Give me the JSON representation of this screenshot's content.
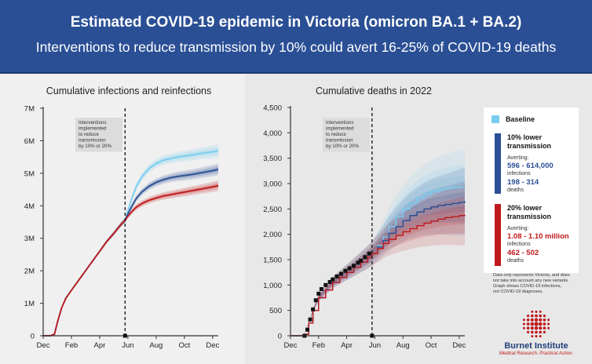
{
  "header": {
    "title": "Estimated COVID-19 epidemic in Victoria (omicron BA.1 + BA.2)",
    "subtitle": "Interventions to reduce transmission by 10% could avert 16-25% of COVID-19 deaths"
  },
  "colors": {
    "header_bg": "#2a4f95",
    "baseline": "#79cdf0",
    "lower10": "#2a4f95",
    "lower20": "#c0191c",
    "observed": "#111111"
  },
  "chart_data": [
    {
      "type": "line",
      "title": "Cumulative infections and reinfections",
      "xlabel": "",
      "ylabel": "",
      "x_ticks": [
        "Dec",
        "Feb",
        "Apr",
        "Jun",
        "Aug",
        "Oct",
        "Dec"
      ],
      "x_range_months": [
        0,
        12.4
      ],
      "y_ticks": [
        "0",
        "1M",
        "2M",
        "3M",
        "4M",
        "5M",
        "6M",
        "7M"
      ],
      "ylim": [
        0,
        7000000
      ],
      "intervention_month": 5.8,
      "annotation": [
        "Interventions",
        "implemented",
        "to reduce",
        "transmission",
        "by 10% or 20%"
      ],
      "x": [
        0,
        0.5,
        0.8,
        1.0,
        1.3,
        1.6,
        2,
        2.5,
        3,
        3.5,
        4,
        4.5,
        5,
        5.5,
        5.8,
        6.0,
        6.3,
        6.6,
        7,
        7.5,
        8,
        8.5,
        9,
        9.5,
        10,
        10.5,
        11,
        11.5,
        12,
        12.4
      ],
      "series": [
        {
          "name": "Baseline",
          "values": [
            0,
            0,
            50000,
            400000,
            850000,
            1150000,
            1400000,
            1700000,
            2000000,
            2300000,
            2600000,
            2900000,
            3150000,
            3420000,
            3550000,
            3850000,
            4250000,
            4600000,
            4900000,
            5150000,
            5300000,
            5400000,
            5450000,
            5500000,
            5530000,
            5560000,
            5600000,
            5630000,
            5660000,
            5690000
          ]
        },
        {
          "name": "10% lower transmission",
          "values": [
            0,
            0,
            50000,
            400000,
            850000,
            1150000,
            1400000,
            1700000,
            2000000,
            2300000,
            2600000,
            2900000,
            3150000,
            3420000,
            3550000,
            3750000,
            4000000,
            4230000,
            4430000,
            4600000,
            4720000,
            4800000,
            4860000,
            4900000,
            4930000,
            4960000,
            5000000,
            5040000,
            5080000,
            5120000
          ]
        },
        {
          "name": "20% lower transmission",
          "values": [
            0,
            0,
            50000,
            400000,
            850000,
            1150000,
            1400000,
            1700000,
            2000000,
            2300000,
            2600000,
            2900000,
            3150000,
            3420000,
            3550000,
            3680000,
            3830000,
            3960000,
            4070000,
            4170000,
            4240000,
            4300000,
            4340000,
            4380000,
            4420000,
            4460000,
            4500000,
            4540000,
            4580000,
            4620000
          ]
        }
      ]
    },
    {
      "type": "line",
      "title": "Cumulative deaths in 2022",
      "xlabel": "",
      "ylabel": "",
      "x_ticks": [
        "Dec",
        "Feb",
        "Apr",
        "Jun",
        "Aug",
        "Oct",
        "Dec"
      ],
      "x_range_months": [
        0,
        12.4
      ],
      "y_ticks": [
        "0",
        "500",
        "1,000",
        "1,500",
        "2,000",
        "2,500",
        "3,000",
        "3,500",
        "4,000",
        "4,500"
      ],
      "ylim": [
        0,
        4500
      ],
      "intervention_month": 5.8,
      "annotation": [
        "Interventions",
        "implemented",
        "to reduce",
        "transmission",
        "by 10% or 20%"
      ],
      "x": [
        0,
        0.5,
        1.0,
        1.3,
        1.6,
        2,
        2.5,
        3,
        3.5,
        4,
        4.5,
        5,
        5.5,
        5.8,
        6.2,
        6.6,
        7,
        7.5,
        8,
        8.5,
        9,
        9.5,
        10,
        10.5,
        11,
        11.5,
        12,
        12.4
      ],
      "series": [
        {
          "name": "Baseline",
          "values": [
            0,
            0,
            30,
            250,
            500,
            750,
            900,
            1050,
            1150,
            1250,
            1350,
            1450,
            1550,
            1620,
            1780,
            1950,
            2150,
            2350,
            2500,
            2620,
            2720,
            2800,
            2850,
            2880,
            2900,
            2920,
            2930,
            2940
          ]
        },
        {
          "name": "10% lower transmission",
          "values": [
            0,
            0,
            30,
            250,
            500,
            750,
            900,
            1050,
            1150,
            1250,
            1350,
            1450,
            1550,
            1620,
            1750,
            1880,
            2020,
            2150,
            2270,
            2370,
            2440,
            2500,
            2540,
            2570,
            2590,
            2610,
            2630,
            2650
          ]
        },
        {
          "name": "20% lower transmission",
          "values": [
            0,
            0,
            30,
            250,
            500,
            750,
            900,
            1050,
            1150,
            1250,
            1350,
            1450,
            1550,
            1620,
            1720,
            1820,
            1900,
            1980,
            2050,
            2110,
            2170,
            2220,
            2260,
            2300,
            2330,
            2350,
            2370,
            2380
          ]
        },
        {
          "name": "Observed",
          "x": [
            1.0,
            1.2,
            1.4,
            1.6,
            1.8,
            2.0,
            2.2,
            2.5,
            2.8,
            3.0,
            3.3,
            3.6,
            3.9,
            4.2,
            4.5,
            4.8,
            5.0,
            5.3,
            5.6
          ],
          "values": [
            0,
            120,
            320,
            520,
            700,
            830,
            920,
            1000,
            1060,
            1110,
            1170,
            1220,
            1280,
            1330,
            1380,
            1440,
            1480,
            1550,
            1620
          ]
        }
      ]
    }
  ],
  "legend": {
    "baseline_label": "Baseline",
    "lower10_title": [
      "10% lower",
      "transmission"
    ],
    "lower10_averting": "Averting:",
    "lower10_infections_value": "596 - 614,000",
    "lower10_infections_label": "infections",
    "lower10_deaths_value": "198 - 314",
    "lower10_deaths_label": "deaths",
    "lower20_title": [
      "20% lower",
      "transmission"
    ],
    "lower20_averting": "Averting:",
    "lower20_infections_value": "1.08 - 1.10 million",
    "lower20_infections_label": "infections",
    "lower20_deaths_value": "462 - 502",
    "lower20_deaths_label": "deaths"
  },
  "notes": [
    "Data only represents Victoria, and does",
    "not take into account any new variants.",
    "Graph shows COVID-19 infections,",
    "not COVID-19 diagnoses."
  ],
  "logo": {
    "name": "Burnet Institute",
    "tagline": "Medical Research. Practical Action."
  }
}
